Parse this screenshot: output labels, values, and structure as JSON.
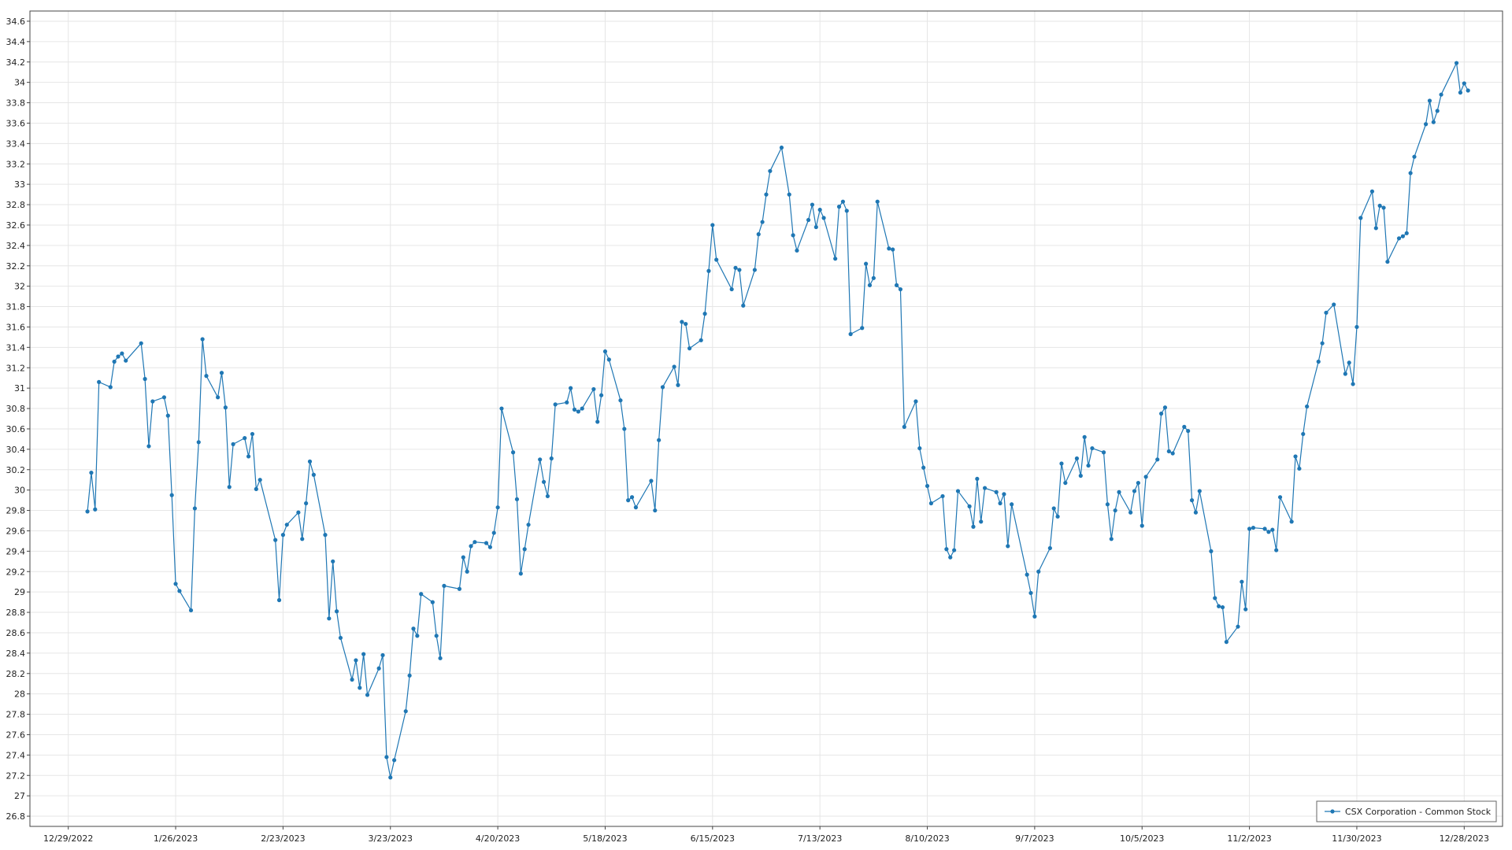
{
  "chart_data": {
    "type": "line",
    "title": "",
    "xlabel": "",
    "ylabel": "",
    "x_range": [
      "2022-12-19",
      "2024-01-07"
    ],
    "ylim": [
      26.7,
      34.7
    ],
    "y_ticks": [
      26.8,
      27,
      27.2,
      27.4,
      27.6,
      27.8,
      28,
      28.2,
      28.4,
      28.6,
      28.8,
      29,
      29.2,
      29.4,
      29.6,
      29.8,
      30,
      30.2,
      30.4,
      30.6,
      30.8,
      31,
      31.2,
      31.4,
      31.6,
      31.8,
      32,
      32.2,
      32.4,
      32.6,
      32.8,
      33,
      33.2,
      33.4,
      33.6,
      33.8,
      34,
      34.2,
      34.4,
      34.6
    ],
    "x_ticks": [
      {
        "date": "2022-12-29",
        "label": "12/29/2022"
      },
      {
        "date": "2023-01-26",
        "label": "1/26/2023"
      },
      {
        "date": "2023-02-23",
        "label": "2/23/2023"
      },
      {
        "date": "2023-03-23",
        "label": "3/23/2023"
      },
      {
        "date": "2023-04-20",
        "label": "4/20/2023"
      },
      {
        "date": "2023-05-18",
        "label": "5/18/2023"
      },
      {
        "date": "2023-06-15",
        "label": "6/15/2023"
      },
      {
        "date": "2023-07-13",
        "label": "7/13/2023"
      },
      {
        "date": "2023-08-10",
        "label": "8/10/2023"
      },
      {
        "date": "2023-09-07",
        "label": "9/7/2023"
      },
      {
        "date": "2023-10-05",
        "label": "10/5/2023"
      },
      {
        "date": "2023-11-02",
        "label": "11/2/2023"
      },
      {
        "date": "2023-11-30",
        "label": "11/30/2023"
      },
      {
        "date": "2023-12-28",
        "label": "12/28/2023"
      }
    ],
    "grid": true,
    "legend_position": "bottom-right",
    "colors": {
      "series": "#1f77b4",
      "grid": "#e6e6e6",
      "axis": "#444444"
    },
    "series": [
      {
        "name": "CSX Corporation - Common Stock",
        "points": [
          [
            "2023-01-03",
            29.79
          ],
          [
            "2023-01-04",
            30.17
          ],
          [
            "2023-01-05",
            29.81
          ],
          [
            "2023-01-06",
            31.06
          ],
          [
            "2023-01-09",
            31.01
          ],
          [
            "2023-01-10",
            31.26
          ],
          [
            "2023-01-11",
            31.31
          ],
          [
            "2023-01-12",
            31.34
          ],
          [
            "2023-01-13",
            31.27
          ],
          [
            "2023-01-17",
            31.44
          ],
          [
            "2023-01-18",
            31.09
          ],
          [
            "2023-01-19",
            30.43
          ],
          [
            "2023-01-20",
            30.87
          ],
          [
            "2023-01-23",
            30.91
          ],
          [
            "2023-01-24",
            30.73
          ],
          [
            "2023-01-25",
            29.95
          ],
          [
            "2023-01-26",
            29.08
          ],
          [
            "2023-01-27",
            29.01
          ],
          [
            "2023-01-30",
            28.82
          ],
          [
            "2023-01-31",
            29.82
          ],
          [
            "2023-02-01",
            30.47
          ],
          [
            "2023-02-02",
            31.48
          ],
          [
            "2023-02-03",
            31.12
          ],
          [
            "2023-02-06",
            30.91
          ],
          [
            "2023-02-07",
            31.15
          ],
          [
            "2023-02-08",
            30.81
          ],
          [
            "2023-02-09",
            30.03
          ],
          [
            "2023-02-10",
            30.45
          ],
          [
            "2023-02-13",
            30.51
          ],
          [
            "2023-02-14",
            30.33
          ],
          [
            "2023-02-15",
            30.55
          ],
          [
            "2023-02-16",
            30.01
          ],
          [
            "2023-02-17",
            30.1
          ],
          [
            "2023-02-21",
            29.51
          ],
          [
            "2023-02-22",
            28.92
          ],
          [
            "2023-02-23",
            29.56
          ],
          [
            "2023-02-24",
            29.66
          ],
          [
            "2023-02-27",
            29.78
          ],
          [
            "2023-02-28",
            29.52
          ],
          [
            "2023-03-01",
            29.87
          ],
          [
            "2023-03-02",
            30.28
          ],
          [
            "2023-03-03",
            30.15
          ],
          [
            "2023-03-06",
            29.56
          ],
          [
            "2023-03-07",
            28.74
          ],
          [
            "2023-03-08",
            29.3
          ],
          [
            "2023-03-09",
            28.81
          ],
          [
            "2023-03-10",
            28.55
          ],
          [
            "2023-03-13",
            28.14
          ],
          [
            "2023-03-14",
            28.33
          ],
          [
            "2023-03-15",
            28.06
          ],
          [
            "2023-03-16",
            28.39
          ],
          [
            "2023-03-17",
            27.99
          ],
          [
            "2023-03-20",
            28.25
          ],
          [
            "2023-03-21",
            28.38
          ],
          [
            "2023-03-22",
            27.38
          ],
          [
            "2023-03-23",
            27.18
          ],
          [
            "2023-03-24",
            27.35
          ],
          [
            "2023-03-27",
            27.83
          ],
          [
            "2023-03-28",
            28.18
          ],
          [
            "2023-03-29",
            28.64
          ],
          [
            "2023-03-30",
            28.57
          ],
          [
            "2023-03-31",
            28.98
          ],
          [
            "2023-04-03",
            28.9
          ],
          [
            "2023-04-04",
            28.57
          ],
          [
            "2023-04-05",
            28.35
          ],
          [
            "2023-04-06",
            29.06
          ],
          [
            "2023-04-10",
            29.03
          ],
          [
            "2023-04-11",
            29.34
          ],
          [
            "2023-04-12",
            29.2
          ],
          [
            "2023-04-13",
            29.45
          ],
          [
            "2023-04-14",
            29.49
          ],
          [
            "2023-04-17",
            29.48
          ],
          [
            "2023-04-18",
            29.44
          ],
          [
            "2023-04-19",
            29.58
          ],
          [
            "2023-04-20",
            29.83
          ],
          [
            "2023-04-21",
            30.8
          ],
          [
            "2023-04-24",
            30.37
          ],
          [
            "2023-04-25",
            29.91
          ],
          [
            "2023-04-26",
            29.18
          ],
          [
            "2023-04-27",
            29.42
          ],
          [
            "2023-04-28",
            29.66
          ],
          [
            "2023-05-01",
            30.3
          ],
          [
            "2023-05-02",
            30.08
          ],
          [
            "2023-05-03",
            29.94
          ],
          [
            "2023-05-04",
            30.31
          ],
          [
            "2023-05-05",
            30.84
          ],
          [
            "2023-05-08",
            30.86
          ],
          [
            "2023-05-09",
            31.0
          ],
          [
            "2023-05-10",
            30.79
          ],
          [
            "2023-05-11",
            30.77
          ],
          [
            "2023-05-12",
            30.8
          ],
          [
            "2023-05-15",
            30.99
          ],
          [
            "2023-05-16",
            30.67
          ],
          [
            "2023-05-17",
            30.93
          ],
          [
            "2023-05-18",
            31.36
          ],
          [
            "2023-05-19",
            31.28
          ],
          [
            "2023-05-22",
            30.88
          ],
          [
            "2023-05-23",
            30.6
          ],
          [
            "2023-05-24",
            29.9
          ],
          [
            "2023-05-25",
            29.93
          ],
          [
            "2023-05-26",
            29.83
          ],
          [
            "2023-05-30",
            30.09
          ],
          [
            "2023-05-31",
            29.8
          ],
          [
            "2023-06-01",
            30.49
          ],
          [
            "2023-06-02",
            31.01
          ],
          [
            "2023-06-05",
            31.21
          ],
          [
            "2023-06-06",
            31.03
          ],
          [
            "2023-06-07",
            31.65
          ],
          [
            "2023-06-08",
            31.63
          ],
          [
            "2023-06-09",
            31.39
          ],
          [
            "2023-06-12",
            31.47
          ],
          [
            "2023-06-13",
            31.73
          ],
          [
            "2023-06-14",
            32.15
          ],
          [
            "2023-06-15",
            32.6
          ],
          [
            "2023-06-16",
            32.26
          ],
          [
            "2023-06-20",
            31.97
          ],
          [
            "2023-06-21",
            32.18
          ],
          [
            "2023-06-22",
            32.16
          ],
          [
            "2023-06-23",
            31.81
          ],
          [
            "2023-06-26",
            32.16
          ],
          [
            "2023-06-27",
            32.51
          ],
          [
            "2023-06-28",
            32.63
          ],
          [
            "2023-06-29",
            32.9
          ],
          [
            "2023-06-30",
            33.13
          ],
          [
            "2023-07-03",
            33.36
          ],
          [
            "2023-07-05",
            32.9
          ],
          [
            "2023-07-06",
            32.5
          ],
          [
            "2023-07-07",
            32.35
          ],
          [
            "2023-07-10",
            32.65
          ],
          [
            "2023-07-11",
            32.8
          ],
          [
            "2023-07-12",
            32.58
          ],
          [
            "2023-07-13",
            32.75
          ],
          [
            "2023-07-14",
            32.67
          ],
          [
            "2023-07-17",
            32.27
          ],
          [
            "2023-07-18",
            32.78
          ],
          [
            "2023-07-19",
            32.83
          ],
          [
            "2023-07-20",
            32.74
          ],
          [
            "2023-07-21",
            31.53
          ],
          [
            "2023-07-24",
            31.59
          ],
          [
            "2023-07-25",
            32.22
          ],
          [
            "2023-07-26",
            32.01
          ],
          [
            "2023-07-27",
            32.08
          ],
          [
            "2023-07-28",
            32.83
          ],
          [
            "2023-07-31",
            32.37
          ],
          [
            "2023-08-01",
            32.36
          ],
          [
            "2023-08-02",
            32.01
          ],
          [
            "2023-08-03",
            31.97
          ],
          [
            "2023-08-04",
            30.62
          ],
          [
            "2023-08-07",
            30.87
          ],
          [
            "2023-08-08",
            30.41
          ],
          [
            "2023-08-09",
            30.22
          ],
          [
            "2023-08-10",
            30.04
          ],
          [
            "2023-08-11",
            29.87
          ],
          [
            "2023-08-14",
            29.94
          ],
          [
            "2023-08-15",
            29.42
          ],
          [
            "2023-08-16",
            29.34
          ],
          [
            "2023-08-17",
            29.41
          ],
          [
            "2023-08-18",
            29.99
          ],
          [
            "2023-08-21",
            29.84
          ],
          [
            "2023-08-22",
            29.64
          ],
          [
            "2023-08-23",
            30.11
          ],
          [
            "2023-08-24",
            29.69
          ],
          [
            "2023-08-25",
            30.02
          ],
          [
            "2023-08-28",
            29.98
          ],
          [
            "2023-08-29",
            29.87
          ],
          [
            "2023-08-30",
            29.96
          ],
          [
            "2023-08-31",
            29.45
          ],
          [
            "2023-09-01",
            29.86
          ],
          [
            "2023-09-05",
            29.17
          ],
          [
            "2023-09-06",
            28.99
          ],
          [
            "2023-09-07",
            28.76
          ],
          [
            "2023-09-08",
            29.2
          ],
          [
            "2023-09-11",
            29.43
          ],
          [
            "2023-09-12",
            29.82
          ],
          [
            "2023-09-13",
            29.74
          ],
          [
            "2023-09-14",
            30.26
          ],
          [
            "2023-09-15",
            30.07
          ],
          [
            "2023-09-18",
            30.31
          ],
          [
            "2023-09-19",
            30.14
          ],
          [
            "2023-09-20",
            30.52
          ],
          [
            "2023-09-21",
            30.24
          ],
          [
            "2023-09-22",
            30.41
          ],
          [
            "2023-09-25",
            30.37
          ],
          [
            "2023-09-26",
            29.86
          ],
          [
            "2023-09-27",
            29.52
          ],
          [
            "2023-09-28",
            29.8
          ],
          [
            "2023-09-29",
            29.98
          ],
          [
            "2023-10-02",
            29.78
          ],
          [
            "2023-10-03",
            29.99
          ],
          [
            "2023-10-04",
            30.07
          ],
          [
            "2023-10-05",
            29.65
          ],
          [
            "2023-10-06",
            30.13
          ],
          [
            "2023-10-09",
            30.3
          ],
          [
            "2023-10-10",
            30.75
          ],
          [
            "2023-10-11",
            30.81
          ],
          [
            "2023-10-12",
            30.38
          ],
          [
            "2023-10-13",
            30.36
          ],
          [
            "2023-10-16",
            30.62
          ],
          [
            "2023-10-17",
            30.58
          ],
          [
            "2023-10-18",
            29.9
          ],
          [
            "2023-10-19",
            29.78
          ],
          [
            "2023-10-20",
            29.99
          ],
          [
            "2023-10-23",
            29.4
          ],
          [
            "2023-10-24",
            28.94
          ],
          [
            "2023-10-25",
            28.86
          ],
          [
            "2023-10-26",
            28.85
          ],
          [
            "2023-10-27",
            28.51
          ],
          [
            "2023-10-30",
            28.66
          ],
          [
            "2023-10-31",
            29.1
          ],
          [
            "2023-11-01",
            28.83
          ],
          [
            "2023-11-02",
            29.62
          ],
          [
            "2023-11-03",
            29.63
          ],
          [
            "2023-11-06",
            29.62
          ],
          [
            "2023-11-07",
            29.59
          ],
          [
            "2023-11-08",
            29.61
          ],
          [
            "2023-11-09",
            29.41
          ],
          [
            "2023-11-10",
            29.93
          ],
          [
            "2023-11-13",
            29.69
          ],
          [
            "2023-11-14",
            30.33
          ],
          [
            "2023-11-15",
            30.21
          ],
          [
            "2023-11-16",
            30.55
          ],
          [
            "2023-11-17",
            30.82
          ],
          [
            "2023-11-20",
            31.26
          ],
          [
            "2023-11-21",
            31.44
          ],
          [
            "2023-11-22",
            31.74
          ],
          [
            "2023-11-24",
            31.82
          ],
          [
            "2023-11-27",
            31.14
          ],
          [
            "2023-11-28",
            31.25
          ],
          [
            "2023-11-29",
            31.04
          ],
          [
            "2023-11-30",
            31.6
          ],
          [
            "2023-12-01",
            32.67
          ],
          [
            "2023-12-04",
            32.93
          ],
          [
            "2023-12-05",
            32.57
          ],
          [
            "2023-12-06",
            32.79
          ],
          [
            "2023-12-07",
            32.77
          ],
          [
            "2023-12-08",
            32.24
          ],
          [
            "2023-12-11",
            32.47
          ],
          [
            "2023-12-12",
            32.49
          ],
          [
            "2023-12-13",
            32.52
          ],
          [
            "2023-12-14",
            33.11
          ],
          [
            "2023-12-15",
            33.27
          ],
          [
            "2023-12-18",
            33.59
          ],
          [
            "2023-12-19",
            33.82
          ],
          [
            "2023-12-20",
            33.61
          ],
          [
            "2023-12-21",
            33.72
          ],
          [
            "2023-12-22",
            33.88
          ],
          [
            "2023-12-26",
            34.19
          ],
          [
            "2023-12-27",
            33.9
          ],
          [
            "2023-12-28",
            33.99
          ],
          [
            "2023-12-29",
            33.92
          ]
        ]
      }
    ]
  }
}
